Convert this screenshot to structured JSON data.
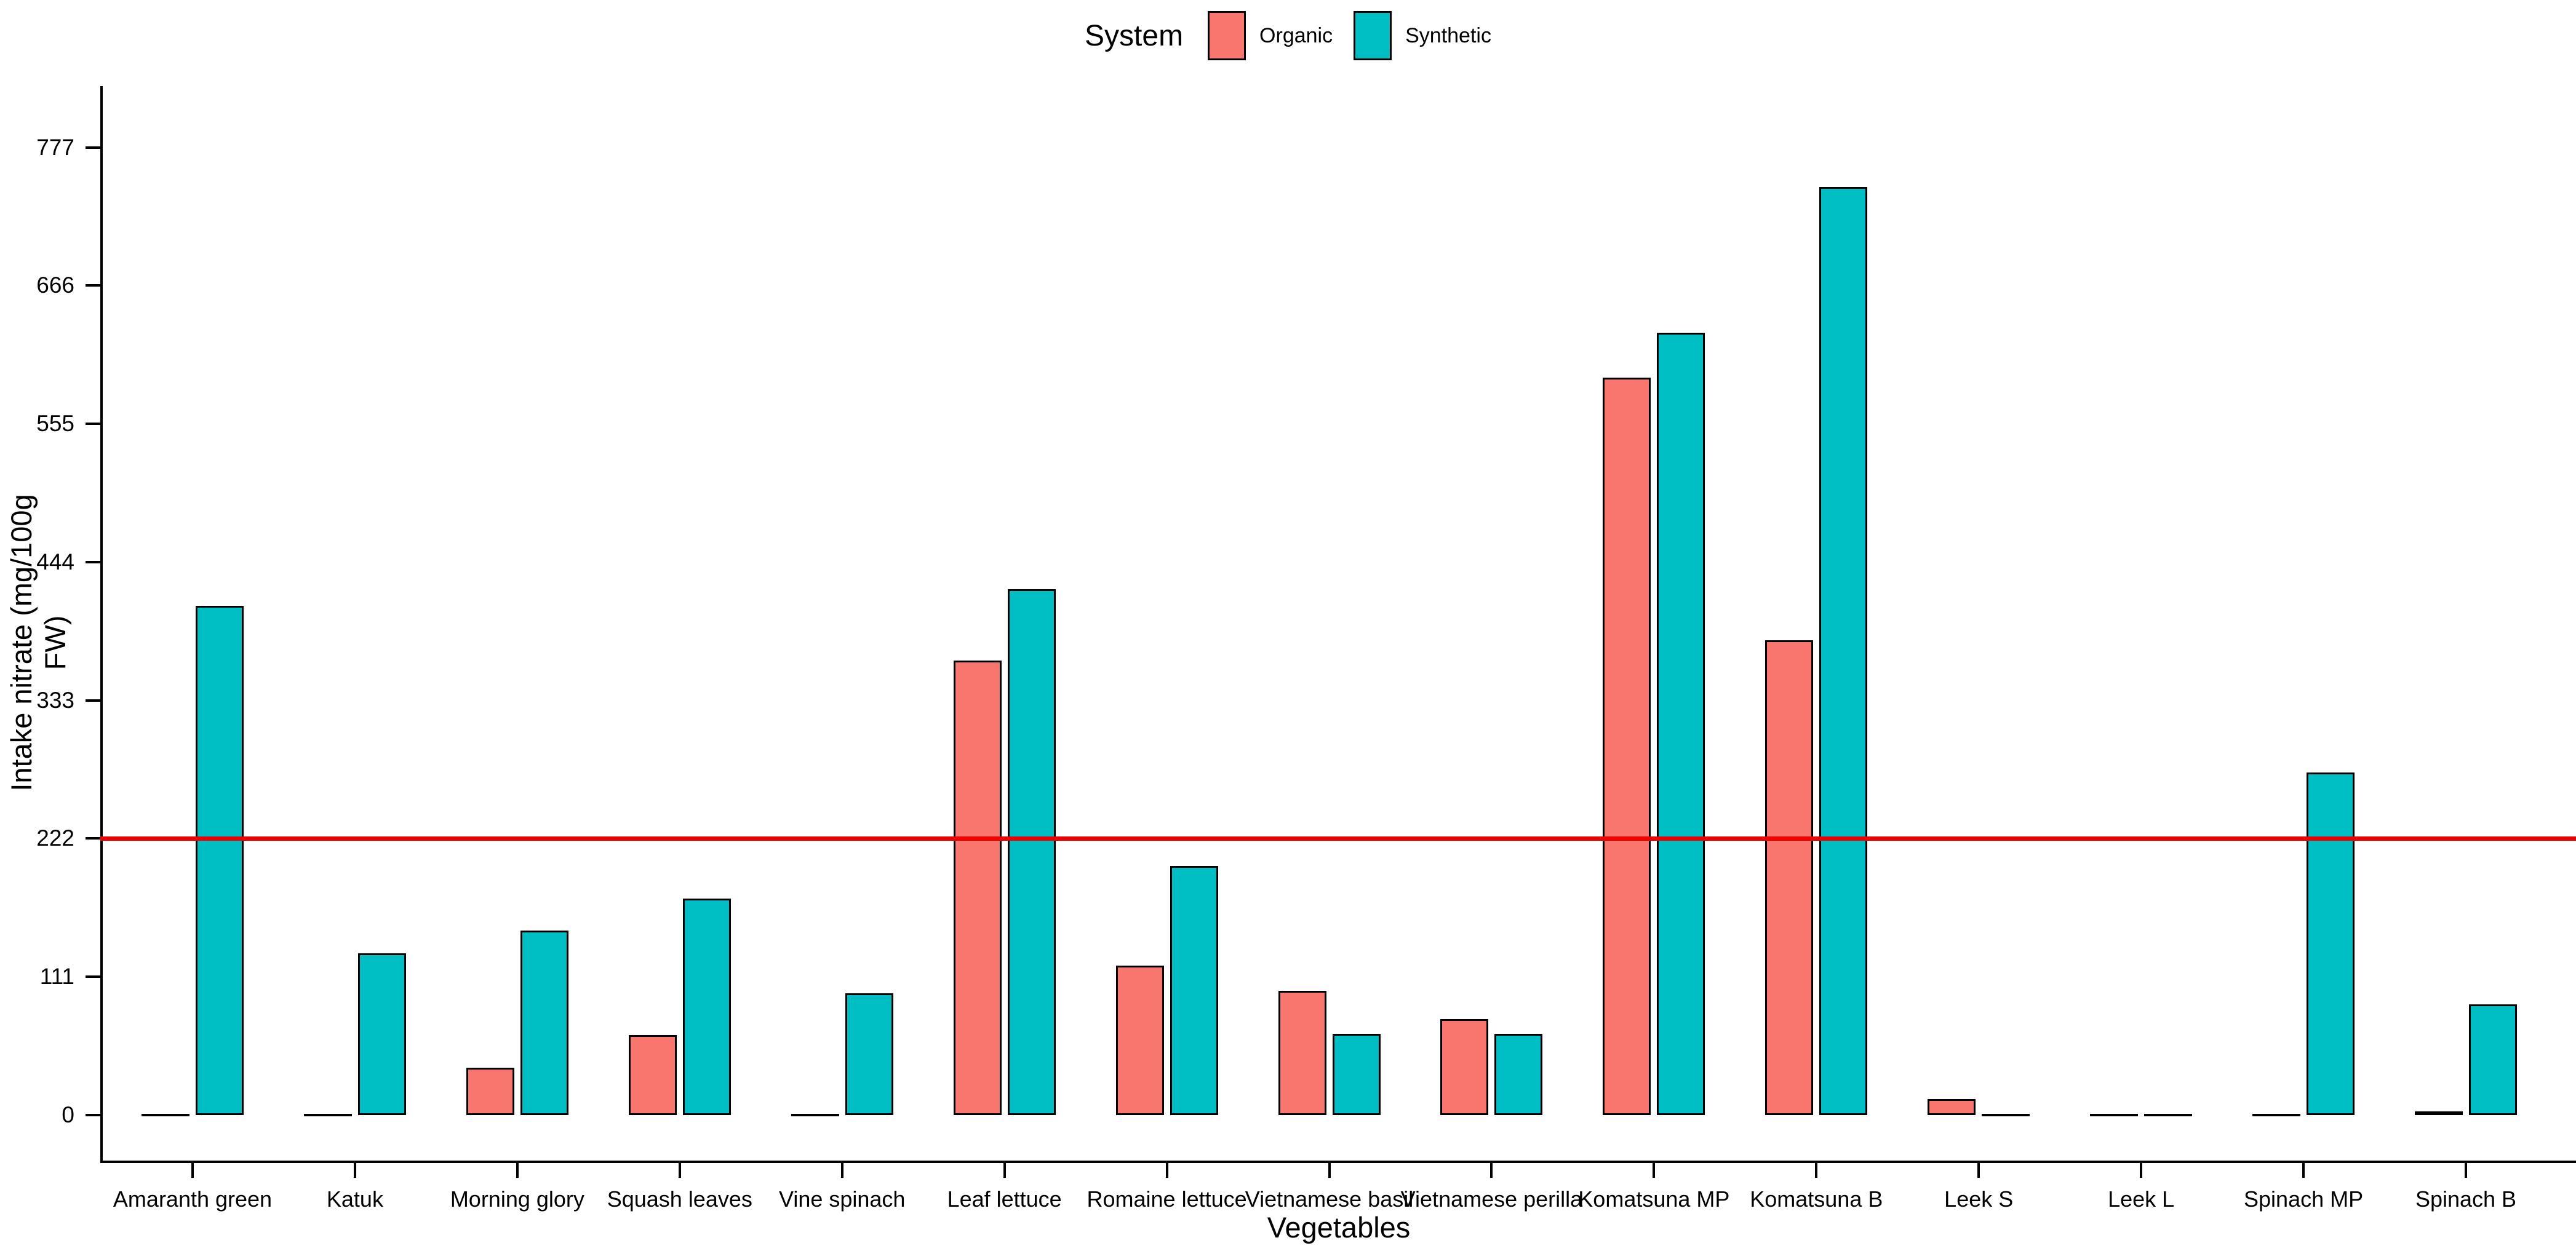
{
  "legend": {
    "title": "System",
    "items": [
      {
        "label": "Organic",
        "color": "#F8766D"
      },
      {
        "label": "Synthetic",
        "color": "#00BFC4"
      }
    ]
  },
  "axes": {
    "y_label": "Intake nitrate (mg/100g FW)",
    "x_label": "Vegetables",
    "y_ticks": [
      0,
      111,
      222,
      333,
      444,
      555,
      666,
      777
    ]
  },
  "reference_line": {
    "value": 222,
    "color": "#EE0000"
  },
  "chart_data": {
    "type": "bar",
    "title": "",
    "categories": [
      "Amaranth green",
      "Katuk",
      "Morning glory",
      "Squash leaves",
      "Vine spinach",
      "Leaf lettuce",
      "Romaine lettuce",
      "Vietnamese basil",
      "Vietnamese perilla",
      "Komatsuna MP",
      "Komatsuna B",
      "Leek S",
      "Leek L",
      "Spinach MP",
      "Spinach B"
    ],
    "series": [
      {
        "name": "Organic",
        "color": "#F8766D",
        "values": [
          0,
          0,
          38,
          64,
          0,
          365,
          120,
          100,
          77,
          592,
          381,
          13,
          0,
          0,
          3
        ]
      },
      {
        "name": "Synthetic",
        "color": "#00BFC4",
        "values": [
          409,
          130,
          148,
          174,
          98,
          422,
          200,
          65,
          65,
          628,
          745,
          0,
          0,
          275,
          89
        ]
      }
    ],
    "xlabel": "Vegetables",
    "ylabel": "Intake nitrate (mg/100g FW)",
    "ylim": [
      0,
      815
    ],
    "grid": false,
    "legend_position": "top-center",
    "reference_line_y": 222,
    "bar_edge_color": "#000000",
    "axis_color": "#000000"
  }
}
